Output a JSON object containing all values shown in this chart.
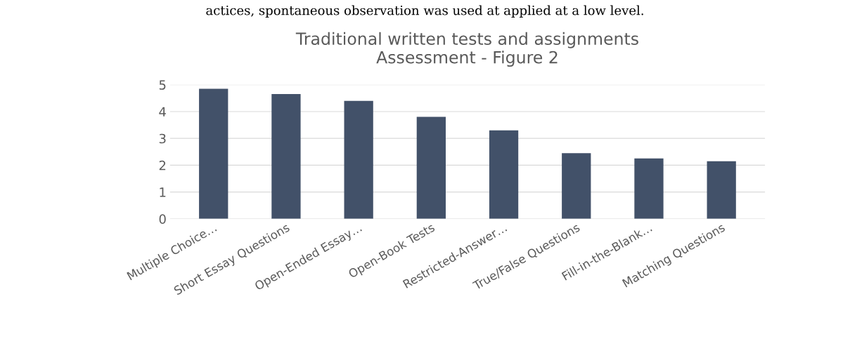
{
  "chart_data": {
    "type": "bar",
    "title": "Traditional written tests and assignments\nAssessment - Figure 2",
    "categories": [
      "Multiple Choice…",
      "Short Essay Questions",
      "Open-Ended Essay…",
      "Open-Book Tests",
      "Restricted-Answer…",
      "True/False Questions",
      "Fill-in-the-Blank…",
      "Matching Questions"
    ],
    "values": [
      4.85,
      4.65,
      4.4,
      3.8,
      3.3,
      2.45,
      2.25,
      2.15
    ],
    "color": "#425169",
    "ylim": [
      0,
      5
    ],
    "yticks": [
      0,
      1,
      2,
      3,
      4,
      5
    ],
    "grid": "y",
    "annotations": [
      "actices, spontaneous observation was used at applied at a low level."
    ]
  }
}
